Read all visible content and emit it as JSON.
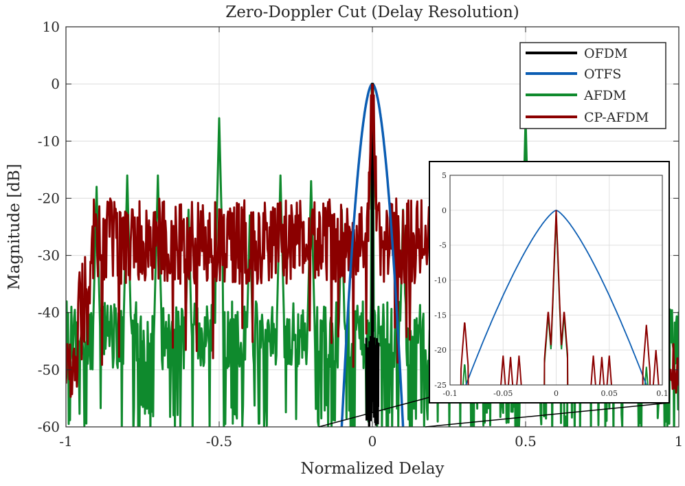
{
  "chart_data": {
    "type": "line",
    "title": "Zero-Doppler Cut (Delay Resolution)",
    "xlabel": "Normalized Delay",
    "ylabel": "Magnitude [dB]",
    "xlim": [
      -1,
      1
    ],
    "ylim": [
      -60,
      10
    ],
    "xticks": [
      -1,
      -0.5,
      0,
      0.5,
      1
    ],
    "xtick_labels": [
      "-1",
      "-0.5",
      "0",
      "0.5",
      "1"
    ],
    "yticks": [
      10,
      0,
      -10,
      -20,
      -30,
      -40,
      -50,
      -60
    ],
    "ytick_labels": [
      "10",
      "0",
      "-10",
      "-20",
      "-30",
      "-40",
      "-50",
      "-60"
    ],
    "grid": true,
    "legend_position": "top-right",
    "series": [
      {
        "name": "OFDM",
        "color": "#000000",
        "description": "pulse at 0 dB at zero delay, noise floor about -45 to -60 dB only near zero delay"
      },
      {
        "name": "OTFS",
        "color": "#0b5db3",
        "description": "main lobe peaking at 0 dB at zero delay, falling to -60 dB near delay ±0.1"
      },
      {
        "name": "AFDM",
        "color": "#0f8a2d",
        "description": "noise floor -40 to -60 dB with spikes near -6 dB at delay ±0.5 and about -17 dB at ±0.8, ±0.7, ±0.3, ±0.2"
      },
      {
        "name": "CP-AFDM",
        "color": "#8b0000",
        "description": "peak 0 dB at zero delay, sidelobes -18 to -35 dB for |delay| up to about 0.95"
      }
    ],
    "inset": {
      "xlim": [
        -0.1,
        0.1
      ],
      "ylim": [
        -25,
        5
      ],
      "xticks": [
        -0.1,
        -0.05,
        0,
        0.05,
        0.1
      ],
      "xtick_labels": [
        "-0.1",
        "-0.05",
        "0",
        "0.05",
        "0.1"
      ],
      "yticks": [
        5,
        0,
        -5,
        -10,
        -15,
        -20,
        -25
      ],
      "ytick_labels": [
        "5",
        "0",
        "-5",
        "-10",
        "-15",
        "-20",
        "-25"
      ],
      "zoom_source_xlim": [
        -0.02,
        0.02
      ]
    }
  }
}
